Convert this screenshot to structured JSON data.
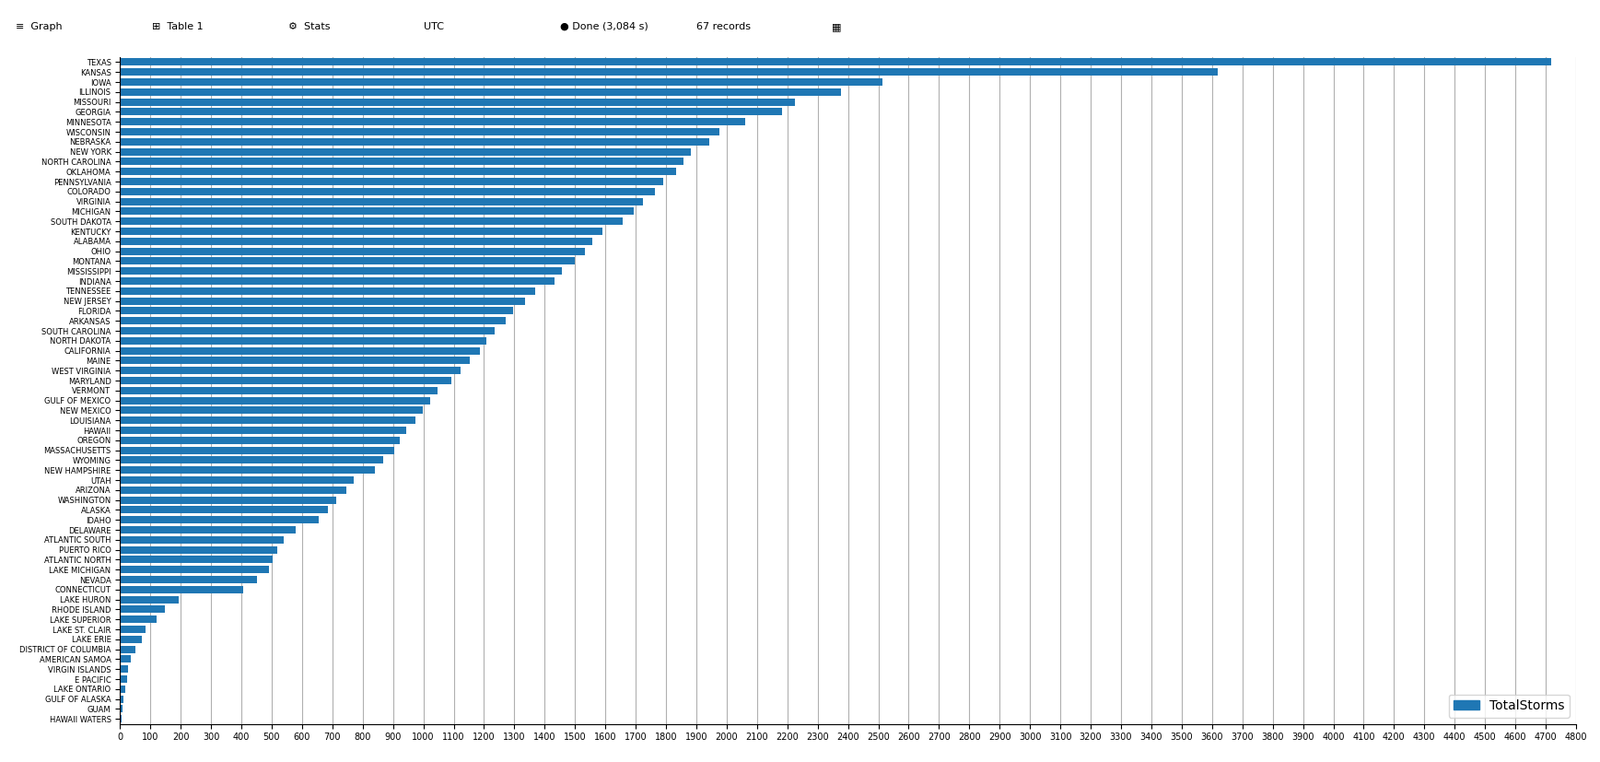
{
  "chart_data": {
    "type": "bar",
    "orientation": "horizontal",
    "categories": [
      "TEXAS",
      "KANSAS",
      "IOWA",
      "ILLINOIS",
      "MISSOURI",
      "GEORGIA",
      "MINNESOTA",
      "WISCONSIN",
      "NEBRASKA",
      "NEW YORK",
      "NORTH CAROLINA",
      "OKLAHOMA",
      "PENNSYLVANIA",
      "COLORADO",
      "VIRGINIA",
      "MICHIGAN",
      "SOUTH DAKOTA",
      "KENTUCKY",
      "ALABAMA",
      "OHIO",
      "MONTANA",
      "MISSISSIPPI",
      "INDIANA",
      "TENNESSEE",
      "NEW JERSEY",
      "FLORIDA",
      "ARKANSAS",
      "SOUTH CAROLINA",
      "NORTH DAKOTA",
      "CALIFORNIA",
      "MAINE",
      "WEST VIRGINIA",
      "MARYLAND",
      "VERMONT",
      "GULF OF MEXICO",
      "NEW MEXICO",
      "LOUISIANA",
      "HAWAII",
      "OREGON",
      "MASSACHUSETTS",
      "WYOMING",
      "NEW HAMPSHIRE",
      "UTAH",
      "ARIZONA",
      "WASHINGTON",
      "ALASKA",
      "IDAHO",
      "DELAWARE",
      "ATLANTIC SOUTH",
      "PUERTO RICO",
      "ATLANTIC NORTH",
      "LAKE MICHIGAN",
      "NEVADA",
      "CONNECTICUT",
      "LAKE HURON",
      "RHODE ISLAND",
      "LAKE SUPERIOR",
      "LAKE ST. CLAIR",
      "LAKE ERIE",
      "DISTRICT OF COLUMBIA",
      "AMERICAN SAMOA",
      "VIRGIN ISLANDS",
      "E PACIFIC",
      "LAKE ONTARIO",
      "GULF OF ALASKA",
      "GUAM",
      "HAWAII WATERS"
    ],
    "series": [
      {
        "name": "TotalStorms",
        "values": [
          4718,
          3618,
          2513,
          2378,
          2225,
          2182,
          2061,
          1975,
          1944,
          1881,
          1858,
          1834,
          1790,
          1762,
          1725,
          1695,
          1658,
          1591,
          1558,
          1533,
          1498,
          1456,
          1432,
          1368,
          1334,
          1296,
          1272,
          1236,
          1208,
          1186,
          1153,
          1124,
          1092,
          1047,
          1023,
          998,
          975,
          945,
          921,
          903,
          868,
          841,
          770,
          746,
          712,
          685,
          654,
          578,
          540,
          518,
          504,
          492,
          451,
          406,
          195,
          148,
          122,
          84,
          71,
          51,
          37,
          27,
          23,
          17,
          11,
          7,
          4
        ]
      }
    ],
    "xlim": [
      0,
      4800
    ],
    "xticks": [
      0,
      100,
      200,
      300,
      400,
      500,
      600,
      700,
      800,
      900,
      1000,
      1100,
      1200,
      1300,
      1400,
      1500,
      1600,
      1700,
      1800,
      1900,
      2000,
      2100,
      2200,
      2300,
      2400,
      2500,
      2600,
      2700,
      2800,
      2900,
      3000,
      3100,
      3200,
      3300,
      3400,
      3500,
      3600,
      3700,
      3800,
      3900,
      4000,
      4100,
      4200,
      4300,
      4400,
      4500,
      4600,
      4700,
      4800
    ],
    "grid": true,
    "legend": "lower right",
    "annotations": [
      "≡  Graph",
      "⊞  Table 1",
      "⚙  Stats",
      "UTC",
      "● Done (3,084 s)",
      "67 records",
      "▦"
    ]
  }
}
